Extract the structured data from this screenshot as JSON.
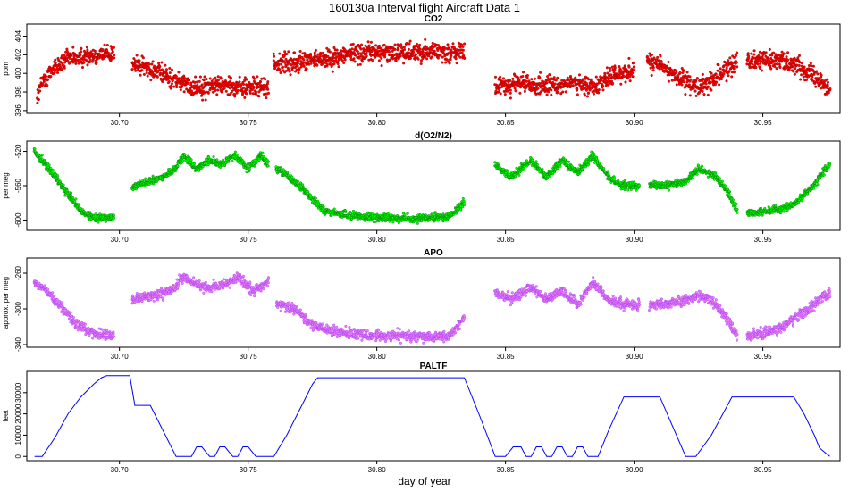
{
  "figure_title": "160130a   Interval flight Aircraft Data 1",
  "xlabel": "day of year",
  "colors": {
    "co2": "#ff0000",
    "co2_edge": "#8b0000",
    "o2n2": "#00ff00",
    "o2n2_edge": "#006400",
    "apo": "#ee82ee",
    "apo_edge": "#9b30ff",
    "paltf": "#0000ff"
  },
  "chart_data": [
    {
      "type": "scatter",
      "title": "CO2",
      "ylabel": "ppm",
      "xlim": [
        30.664,
        30.98
      ],
      "ylim": [
        395.7,
        405.3
      ],
      "xticks": [
        30.7,
        30.75,
        30.8,
        30.85,
        30.9,
        30.95
      ],
      "xtick_labels": [
        "30.70",
        "30.75",
        "30.80",
        "30.85",
        "30.90",
        "30.95"
      ],
      "yticks": [
        396,
        398,
        400,
        402,
        404
      ],
      "ytick_labels": [
        "396",
        "398",
        "400",
        "402",
        "404"
      ],
      "noise": 0.9,
      "segments": [
        {
          "x": [
            30.668,
            30.67,
            30.674,
            30.68,
            30.69,
            30.698
          ],
          "y": [
            397.5,
            399,
            400.5,
            401.5,
            402,
            402.2
          ]
        },
        {
          "x": [
            30.705,
            30.712,
            30.72,
            30.728,
            30.74,
            30.75,
            30.758
          ],
          "y": [
            401,
            400.5,
            399.5,
            398.5,
            398.8,
            398.5,
            398.5
          ]
        },
        {
          "x": [
            30.76,
            30.77,
            30.78,
            30.79,
            30.8,
            30.81,
            30.82,
            30.834
          ],
          "y": [
            401,
            401.2,
            401.5,
            402.2,
            402.3,
            402.2,
            402.4,
            402.2
          ]
        },
        {
          "x": [
            30.846,
            30.855,
            30.865,
            30.875,
            30.882,
            30.89,
            30.9
          ],
          "y": [
            398.5,
            399,
            398.5,
            399,
            398.5,
            399.5,
            400.5
          ]
        },
        {
          "x": [
            30.905,
            30.912,
            30.92,
            30.925,
            30.932,
            30.94
          ],
          "y": [
            401.5,
            400.5,
            399,
            398.5,
            399.5,
            401.5
          ]
        },
        {
          "x": [
            30.944,
            30.952,
            30.96,
            30.966,
            30.972,
            30.976
          ],
          "y": [
            401.5,
            401.5,
            401.2,
            400.5,
            399.5,
            398
          ]
        }
      ]
    },
    {
      "type": "scatter",
      "title": "d(O2/N2)",
      "ylabel": "per meg",
      "xlim": [
        30.664,
        30.98
      ],
      "ylim": [
        -612,
        -508
      ],
      "xticks": [
        30.7,
        30.75,
        30.8,
        30.85,
        30.9,
        30.95
      ],
      "xtick_labels": [
        "30.70",
        "30.75",
        "30.80",
        "30.85",
        "30.90",
        "30.95"
      ],
      "yticks": [
        -600,
        -560,
        -520
      ],
      "ytick_labels": [
        "-600",
        "-560",
        "-520"
      ],
      "noise": 4,
      "segments": [
        {
          "x": [
            30.667,
            30.67,
            30.675,
            30.68,
            30.685,
            30.69,
            30.698
          ],
          "y": [
            -520,
            -530,
            -550,
            -570,
            -590,
            -598,
            -597
          ]
        },
        {
          "x": [
            30.705,
            30.712,
            30.72,
            30.725,
            30.73,
            30.735,
            30.74,
            30.745,
            30.75,
            30.755,
            30.758
          ],
          "y": [
            -560,
            -555,
            -545,
            -525,
            -540,
            -530,
            -535,
            -525,
            -540,
            -525,
            -535
          ]
        },
        {
          "x": [
            30.761,
            30.768,
            30.775,
            30.78,
            30.79,
            30.8,
            30.81,
            30.82,
            30.828,
            30.834
          ],
          "y": [
            -540,
            -555,
            -575,
            -590,
            -595,
            -597,
            -598,
            -598,
            -596,
            -580
          ]
        },
        {
          "x": [
            30.846,
            30.852,
            30.86,
            30.866,
            30.872,
            30.878,
            30.884,
            30.89,
            30.895,
            30.902
          ],
          "y": [
            -535,
            -550,
            -530,
            -550,
            -530,
            -545,
            -525,
            -550,
            -560,
            -560
          ]
        },
        {
          "x": [
            30.906,
            30.912,
            30.92,
            30.925,
            30.932,
            30.937,
            30.94
          ],
          "y": [
            -560,
            -560,
            -555,
            -540,
            -550,
            -570,
            -590
          ]
        },
        {
          "x": [
            30.944,
            30.95,
            30.956,
            30.962,
            30.968,
            30.972,
            30.976
          ],
          "y": [
            -592,
            -590,
            -588,
            -582,
            -565,
            -550,
            -535
          ]
        }
      ]
    },
    {
      "type": "scatter",
      "title": "APO",
      "ylabel": "approx. per meg",
      "xlim": [
        30.664,
        30.98
      ],
      "ylim": [
        -343,
        -243
      ],
      "xticks": [
        30.7,
        30.75,
        30.8,
        30.85,
        30.9,
        30.95
      ],
      "xtick_labels": [
        "30.70",
        "30.75",
        "30.80",
        "30.85",
        "30.90",
        "30.95"
      ],
      "yticks": [
        -340,
        -300,
        -260
      ],
      "ytick_labels": [
        "-340",
        "-300",
        "-260"
      ],
      "noise": 5,
      "segments": [
        {
          "x": [
            30.667,
            30.672,
            30.678,
            30.684,
            30.69,
            30.698
          ],
          "y": [
            -270,
            -280,
            -300,
            -318,
            -328,
            -330
          ]
        },
        {
          "x": [
            30.705,
            30.712,
            30.72,
            30.725,
            30.732,
            30.74,
            30.746,
            30.752,
            30.758
          ],
          "y": [
            -290,
            -285,
            -280,
            -265,
            -275,
            -275,
            -265,
            -280,
            -270
          ]
        },
        {
          "x": [
            30.761,
            30.768,
            30.775,
            30.782,
            30.79,
            30.8,
            30.81,
            30.82,
            30.828,
            30.834
          ],
          "y": [
            -295,
            -300,
            -318,
            -325,
            -328,
            -330,
            -330,
            -332,
            -330,
            -310
          ]
        },
        {
          "x": [
            30.846,
            30.852,
            30.86,
            30.866,
            30.872,
            30.878,
            30.884,
            30.89,
            30.895,
            30.902
          ],
          "y": [
            -280,
            -290,
            -275,
            -290,
            -280,
            -295,
            -270,
            -290,
            -295,
            -295
          ]
        },
        {
          "x": [
            30.906,
            30.912,
            30.92,
            30.926,
            30.932,
            30.937,
            30.94
          ],
          "y": [
            -295,
            -295,
            -290,
            -285,
            -295,
            -315,
            -330
          ]
        },
        {
          "x": [
            30.944,
            30.95,
            30.956,
            30.962,
            30.968,
            30.972,
            30.976
          ],
          "y": [
            -330,
            -328,
            -322,
            -312,
            -300,
            -290,
            -280
          ]
        }
      ]
    },
    {
      "type": "line",
      "title": "PALTF",
      "ylabel": "feet",
      "xlim": [
        30.664,
        30.98
      ],
      "ylim": [
        -2000,
        40000
      ],
      "xticks": [
        30.7,
        30.75,
        30.8,
        30.85,
        30.9,
        30.95
      ],
      "xtick_labels": [
        "30.70",
        "30.75",
        "30.80",
        "30.85",
        "30.90",
        "30.95"
      ],
      "yticks": [
        0,
        10000,
        20000,
        30000
      ],
      "ytick_labels": [
        "0",
        "10000",
        "20000",
        "30000"
      ],
      "x": [
        30.667,
        30.67,
        30.675,
        30.68,
        30.685,
        30.69,
        30.693,
        30.695,
        30.7,
        30.704,
        30.706,
        30.712,
        30.722,
        30.725,
        30.728,
        30.73,
        30.732,
        30.735,
        30.737,
        30.739,
        30.741,
        30.744,
        30.746,
        30.748,
        30.75,
        30.753,
        30.76,
        30.765,
        30.77,
        30.775,
        30.777,
        30.79,
        30.8,
        30.81,
        30.82,
        30.83,
        30.834,
        30.84,
        30.846,
        30.85,
        30.853,
        30.856,
        30.858,
        30.86,
        30.862,
        30.864,
        30.866,
        30.868,
        30.87,
        30.872,
        30.874,
        30.876,
        30.878,
        30.88,
        30.882,
        30.884,
        30.886,
        30.89,
        30.896,
        30.899,
        30.904,
        30.91,
        30.915,
        30.92,
        30.924,
        30.93,
        30.938,
        30.945,
        30.955,
        30.962,
        30.966,
        30.97,
        30.972,
        30.974,
        30.976
      ],
      "y": [
        0,
        0,
        9000,
        20000,
        28000,
        34000,
        37000,
        38000,
        38000,
        38000,
        24000,
        24000,
        0,
        0,
        0,
        4500,
        4500,
        0,
        0,
        4500,
        4500,
        0,
        0,
        4500,
        4500,
        0,
        0,
        10000,
        22000,
        34000,
        37000,
        37000,
        37000,
        37000,
        37000,
        37000,
        37000,
        19000,
        0,
        0,
        4500,
        4500,
        0,
        0,
        4500,
        4500,
        0,
        0,
        4500,
        4500,
        0,
        0,
        4500,
        4500,
        0,
        0,
        0,
        12000,
        28000,
        28000,
        28000,
        28000,
        14000,
        0,
        0,
        10000,
        28000,
        28000,
        28000,
        28000,
        20000,
        10000,
        4000,
        2000,
        0
      ]
    }
  ]
}
